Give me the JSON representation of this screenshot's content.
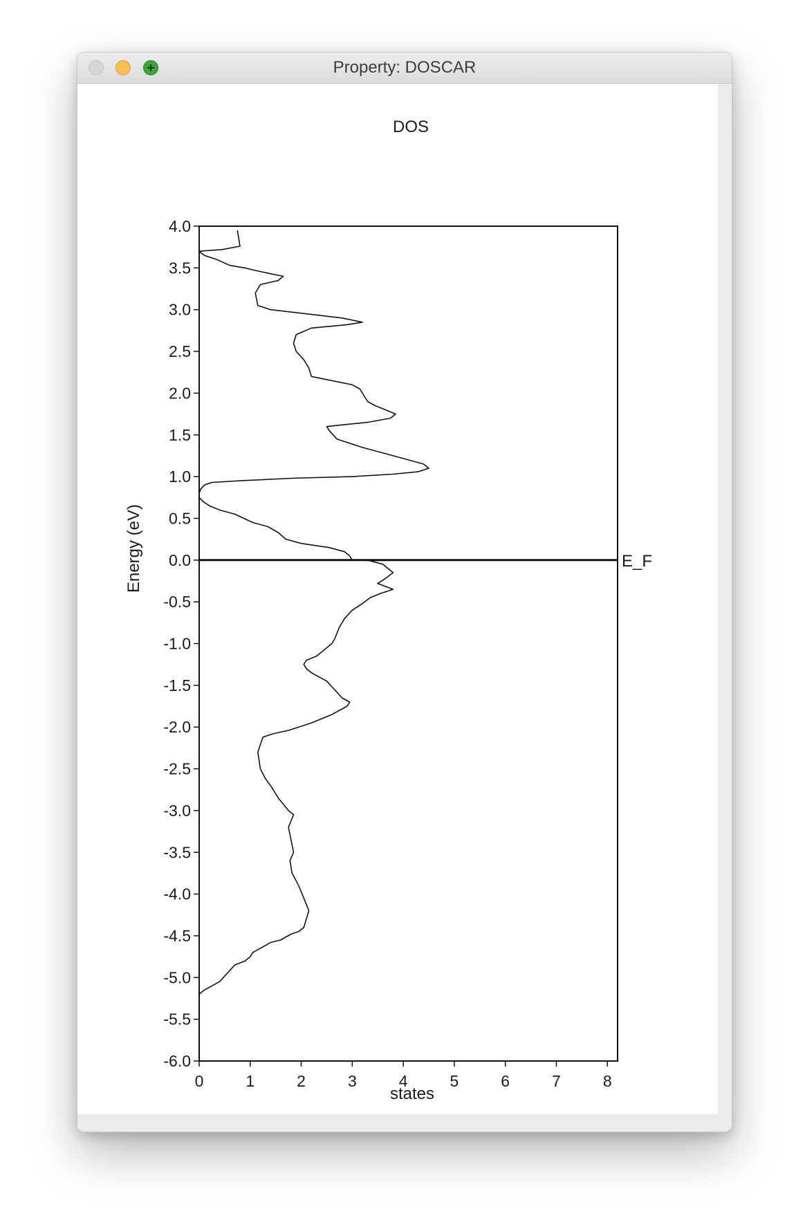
{
  "window": {
    "title": "Property: DOSCAR"
  },
  "chart_data": {
    "type": "line",
    "title": "DOS",
    "xlabel": "states",
    "ylabel": "Energy (eV)",
    "xlim": [
      0,
      8.2
    ],
    "ylim": [
      -6.0,
      4.0
    ],
    "xticks": [
      "0",
      "1",
      "2",
      "3",
      "4",
      "5",
      "6",
      "7",
      "8"
    ],
    "yticks": [
      "4.0",
      "3.5",
      "3.0",
      "2.5",
      "2.0",
      "1.5",
      "1.0",
      "0.5",
      "0.0",
      "-0.5",
      "-1.0",
      "-1.5",
      "-2.0",
      "-2.5",
      "-3.0",
      "-3.5",
      "-4.0",
      "-4.5",
      "-5.0",
      "-5.5",
      "-6.0"
    ],
    "grid": false,
    "fermi_level": {
      "value": 0.0,
      "label": "E_F"
    },
    "series": [
      {
        "x": [
          0.0,
          0.0,
          0.0,
          0.1,
          0.4,
          0.7,
          0.9,
          1.0,
          1.05,
          1.2,
          1.4,
          1.6,
          1.8,
          1.95,
          2.05,
          2.1,
          2.15,
          2.05,
          1.95,
          1.82,
          1.78,
          1.85,
          1.75,
          1.85,
          1.75,
          1.55,
          1.42,
          1.3,
          1.2,
          1.15,
          1.25,
          1.45,
          1.75,
          2.2,
          2.6,
          2.9,
          2.95,
          2.8,
          2.5,
          2.2,
          2.1,
          2.05,
          2.1,
          2.3,
          2.5,
          2.6,
          2.65,
          2.75,
          2.85,
          3.0,
          3.2,
          3.35,
          3.55,
          3.8,
          3.5,
          3.65,
          3.8,
          3.7,
          3.6,
          3.3,
          3.0,
          2.95,
          2.85,
          2.55,
          2.0,
          1.7,
          1.55,
          1.35,
          1.05,
          0.7,
          0.4,
          0.2,
          0.08,
          0.0,
          0.0,
          0.03,
          0.1,
          0.25,
          0.8,
          1.8,
          3.0,
          3.8,
          4.3,
          4.5,
          4.4,
          3.8,
          3.2,
          2.7,
          2.55,
          2.5,
          2.8,
          3.3,
          3.75,
          3.85,
          3.65,
          3.45,
          3.3,
          3.2,
          3.15,
          3.0,
          2.6,
          2.2,
          2.15,
          2.05,
          1.9,
          1.85,
          1.9,
          2.2,
          2.9,
          3.2,
          2.8,
          2.1,
          1.4,
          1.15,
          1.1,
          1.2,
          1.55,
          1.65,
          1.4,
          1.1,
          0.9,
          0.6,
          0.35,
          0.1,
          0.0,
          0.45,
          0.8,
          0.75
        ],
        "y": [
          -6.0,
          -5.5,
          -5.2,
          -5.15,
          -5.05,
          -4.85,
          -4.8,
          -4.75,
          -4.7,
          -4.65,
          -4.58,
          -4.55,
          -4.48,
          -4.45,
          -4.4,
          -4.3,
          -4.2,
          -4.05,
          -3.9,
          -3.75,
          -3.6,
          -3.5,
          -3.2,
          -3.05,
          -3.0,
          -2.85,
          -2.72,
          -2.62,
          -2.5,
          -2.3,
          -2.12,
          -2.08,
          -2.04,
          -1.95,
          -1.85,
          -1.75,
          -1.7,
          -1.65,
          -1.45,
          -1.35,
          -1.3,
          -1.25,
          -1.2,
          -1.15,
          -1.05,
          -1.0,
          -0.95,
          -0.8,
          -0.7,
          -0.6,
          -0.52,
          -0.45,
          -0.4,
          -0.35,
          -0.28,
          -0.22,
          -0.15,
          -0.1,
          -0.05,
          0.0,
          0.0,
          0.05,
          0.1,
          0.15,
          0.2,
          0.25,
          0.33,
          0.4,
          0.45,
          0.55,
          0.6,
          0.65,
          0.7,
          0.75,
          0.8,
          0.85,
          0.9,
          0.93,
          0.95,
          0.98,
          1.0,
          1.03,
          1.06,
          1.1,
          1.15,
          1.25,
          1.35,
          1.45,
          1.55,
          1.6,
          1.62,
          1.65,
          1.7,
          1.75,
          1.8,
          1.85,
          1.9,
          2.0,
          2.05,
          2.1,
          2.15,
          2.2,
          2.3,
          2.4,
          2.5,
          2.6,
          2.7,
          2.78,
          2.82,
          2.85,
          2.9,
          2.95,
          3.0,
          3.05,
          3.2,
          3.3,
          3.35,
          3.4,
          3.43,
          3.47,
          3.5,
          3.53,
          3.6,
          3.65,
          3.7,
          3.72,
          3.76,
          3.95
        ]
      }
    ]
  }
}
